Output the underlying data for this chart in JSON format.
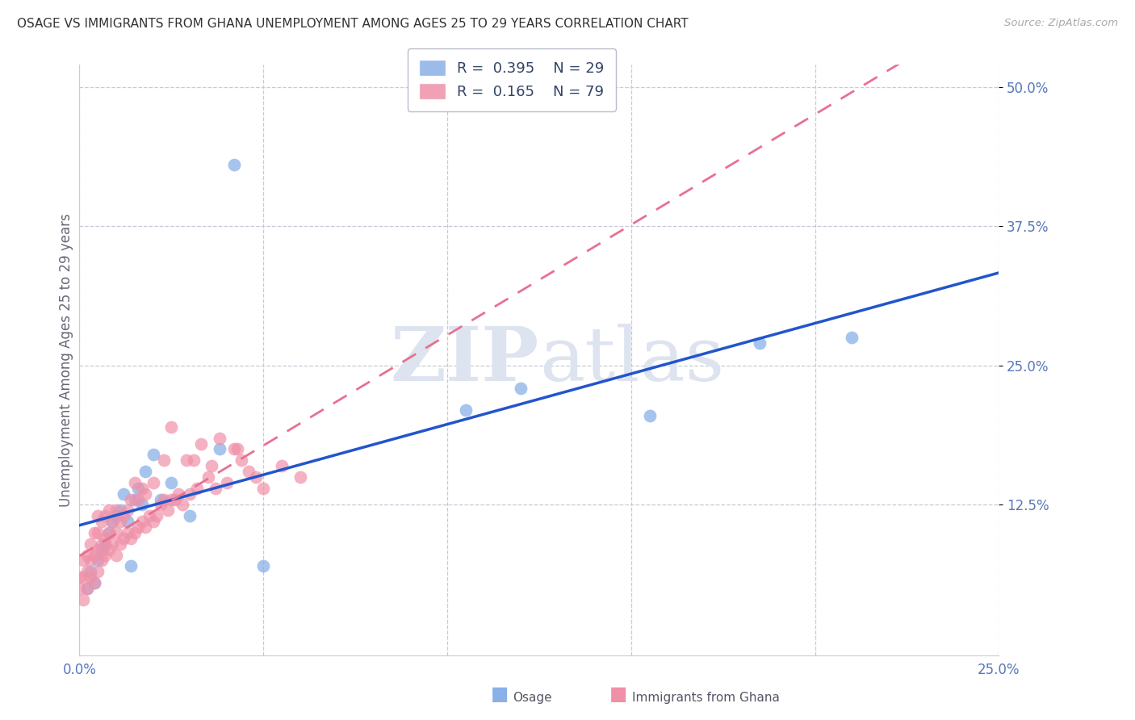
{
  "title": "OSAGE VS IMMIGRANTS FROM GHANA UNEMPLOYMENT AMONG AGES 25 TO 29 YEARS CORRELATION CHART",
  "source": "Source: ZipAtlas.com",
  "ylabel": "Unemployment Among Ages 25 to 29 years",
  "xlim": [
    0.0,
    0.25
  ],
  "ylim": [
    -0.01,
    0.52
  ],
  "ytick_values": [
    0.125,
    0.25,
    0.375,
    0.5
  ],
  "ytick_labels": [
    "12.5%",
    "25.0%",
    "37.5%",
    "50.0%"
  ],
  "xtick_values": [
    0.0,
    0.05,
    0.1,
    0.15,
    0.2,
    0.25
  ],
  "xtick_labels": [
    "0.0%",
    "",
    "",
    "",
    "",
    "25.0%"
  ],
  "grid_color": "#c8c8d8",
  "background_color": "#ffffff",
  "axis_label_color": "#5577bb",
  "watermark_color": "#dde4f0",
  "osage_color": "#8ab0e8",
  "ghana_color": "#f090a8",
  "osage_line_color": "#2255cc",
  "ghana_line_color": "#e87090",
  "R_osage": 0.395,
  "N_osage": 29,
  "R_ghana": 0.165,
  "N_ghana": 79,
  "osage_x": [
    0.002,
    0.003,
    0.004,
    0.005,
    0.006,
    0.007,
    0.008,
    0.009,
    0.01,
    0.011,
    0.012,
    0.013,
    0.014,
    0.015,
    0.016,
    0.017,
    0.018,
    0.02,
    0.022,
    0.025,
    0.03,
    0.038,
    0.042,
    0.05,
    0.105,
    0.12,
    0.155,
    0.185,
    0.21
  ],
  "osage_y": [
    0.05,
    0.065,
    0.055,
    0.075,
    0.085,
    0.09,
    0.1,
    0.11,
    0.115,
    0.12,
    0.135,
    0.11,
    0.07,
    0.13,
    0.14,
    0.125,
    0.155,
    0.17,
    0.13,
    0.145,
    0.115,
    0.175,
    0.43,
    0.07,
    0.21,
    0.23,
    0.205,
    0.27,
    0.275
  ],
  "ghana_x": [
    0.0,
    0.0,
    0.001,
    0.001,
    0.001,
    0.002,
    0.002,
    0.002,
    0.003,
    0.003,
    0.003,
    0.004,
    0.004,
    0.004,
    0.005,
    0.005,
    0.005,
    0.005,
    0.006,
    0.006,
    0.006,
    0.007,
    0.007,
    0.007,
    0.008,
    0.008,
    0.008,
    0.009,
    0.009,
    0.01,
    0.01,
    0.01,
    0.011,
    0.011,
    0.012,
    0.012,
    0.013,
    0.013,
    0.014,
    0.014,
    0.015,
    0.015,
    0.016,
    0.016,
    0.017,
    0.017,
    0.018,
    0.018,
    0.019,
    0.02,
    0.02,
    0.021,
    0.022,
    0.023,
    0.023,
    0.024,
    0.025,
    0.025,
    0.026,
    0.027,
    0.028,
    0.029,
    0.03,
    0.031,
    0.032,
    0.033,
    0.035,
    0.036,
    0.037,
    0.038,
    0.04,
    0.042,
    0.043,
    0.044,
    0.046,
    0.048,
    0.05,
    0.055,
    0.06
  ],
  "ghana_y": [
    0.05,
    0.06,
    0.04,
    0.06,
    0.075,
    0.05,
    0.065,
    0.08,
    0.06,
    0.075,
    0.09,
    0.055,
    0.08,
    0.1,
    0.065,
    0.085,
    0.1,
    0.115,
    0.075,
    0.09,
    0.11,
    0.08,
    0.095,
    0.115,
    0.085,
    0.1,
    0.12,
    0.09,
    0.11,
    0.08,
    0.1,
    0.12,
    0.09,
    0.11,
    0.095,
    0.115,
    0.1,
    0.12,
    0.095,
    0.13,
    0.1,
    0.145,
    0.105,
    0.13,
    0.11,
    0.14,
    0.105,
    0.135,
    0.115,
    0.11,
    0.145,
    0.115,
    0.125,
    0.13,
    0.165,
    0.12,
    0.13,
    0.195,
    0.13,
    0.135,
    0.125,
    0.165,
    0.135,
    0.165,
    0.14,
    0.18,
    0.15,
    0.16,
    0.14,
    0.185,
    0.145,
    0.175,
    0.175,
    0.165,
    0.155,
    0.15,
    0.14,
    0.16,
    0.15
  ]
}
